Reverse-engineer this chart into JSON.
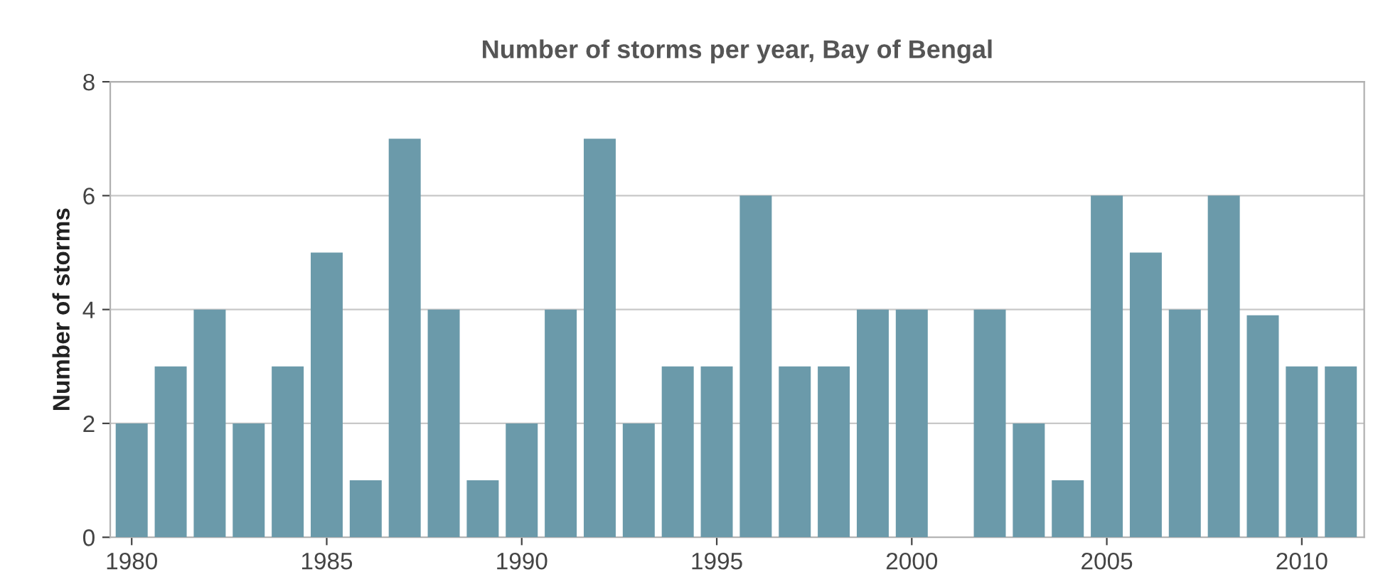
{
  "chart_data": {
    "type": "bar",
    "title": "Number of storms per year, Bay of Bengal",
    "ylabel": "Number of storms",
    "x": [
      1980,
      1981,
      1982,
      1983,
      1984,
      1985,
      1986,
      1987,
      1988,
      1989,
      1990,
      1991,
      1992,
      1993,
      1994,
      1995,
      1996,
      1997,
      1998,
      1999,
      2000,
      2001,
      2002,
      2003,
      2004,
      2005,
      2006,
      2007,
      2008,
      2009,
      2010,
      2011
    ],
    "values": [
      2,
      3,
      4,
      2,
      3,
      5,
      1,
      7,
      4,
      1,
      2,
      4,
      7,
      2,
      3,
      3,
      6,
      3,
      3,
      4,
      4,
      0,
      4,
      2,
      1,
      6,
      5,
      4,
      6,
      3.9,
      3,
      3
    ],
    "color": "#6b9aaa",
    "xlim": [
      1979.45,
      2011.6
    ],
    "xticks": [
      1980,
      1985,
      1990,
      1995,
      2000,
      2005,
      2010
    ],
    "ylim": [
      0,
      8
    ],
    "yticks": [
      0,
      2,
      4,
      6,
      8
    ],
    "grid": "y"
  }
}
